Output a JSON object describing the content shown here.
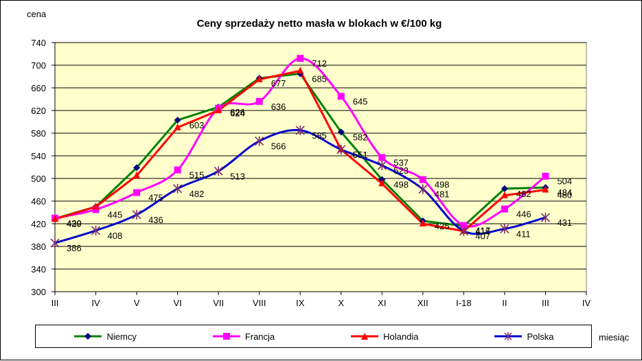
{
  "chart_data": {
    "type": "line",
    "title": "Ceny sprzedaży netto masła w blokach w €/100 kg",
    "ylabel": "cena",
    "xlabel": "miesiąc",
    "ylim": [
      300,
      740
    ],
    "yticks": [
      300,
      340,
      380,
      420,
      460,
      500,
      540,
      580,
      620,
      660,
      700,
      740
    ],
    "categories": [
      "III",
      "IV",
      "V",
      "VI",
      "VII",
      "VIII",
      "IX",
      "X",
      "XI",
      "XII",
      "I-18",
      "II",
      "III",
      "IV"
    ],
    "grid": true,
    "legend_position": "bottom",
    "plot_background": "#ffffcc",
    "series": [
      {
        "name": "Niemcy",
        "color": "#008000",
        "marker_color": "#000080",
        "marker": "diamond",
        "values": [
          429,
          450,
          519,
          603,
          626,
          677,
          685,
          582,
          498,
          425,
          416,
          482,
          484,
          null
        ],
        "labels": [
          true,
          false,
          false,
          true,
          true,
          true,
          true,
          true,
          true,
          true,
          true,
          true,
          true,
          false
        ]
      },
      {
        "name": "Francja",
        "color": "#ff00ff",
        "marker_color": "#ff00ff",
        "marker": "square",
        "values": [
          430,
          445,
          475,
          515,
          624,
          636,
          712,
          645,
          537,
          498,
          417,
          446,
          504,
          null
        ],
        "labels": [
          true,
          true,
          true,
          true,
          true,
          true,
          true,
          true,
          true,
          true,
          true,
          true,
          true,
          false
        ]
      },
      {
        "name": "Holandia",
        "color": "#ff0000",
        "marker_color": "#ff0000",
        "marker": "triangle",
        "values": [
          428,
          450,
          505,
          590,
          620,
          675,
          690,
          551,
          491,
          420,
          407,
          470,
          480,
          null
        ],
        "labels": [
          false,
          false,
          false,
          false,
          false,
          false,
          false,
          true,
          false,
          false,
          true,
          false,
          true,
          false
        ]
      },
      {
        "name": "Polska",
        "color": "#0000cc",
        "marker_color": "#7b2c6a",
        "marker": "star",
        "values": [
          386,
          408,
          436,
          482,
          513,
          566,
          585,
          551,
          523,
          481,
          407,
          411,
          431,
          null
        ],
        "labels": [
          true,
          true,
          true,
          true,
          true,
          true,
          true,
          true,
          true,
          true,
          false,
          true,
          true,
          false
        ]
      }
    ]
  }
}
